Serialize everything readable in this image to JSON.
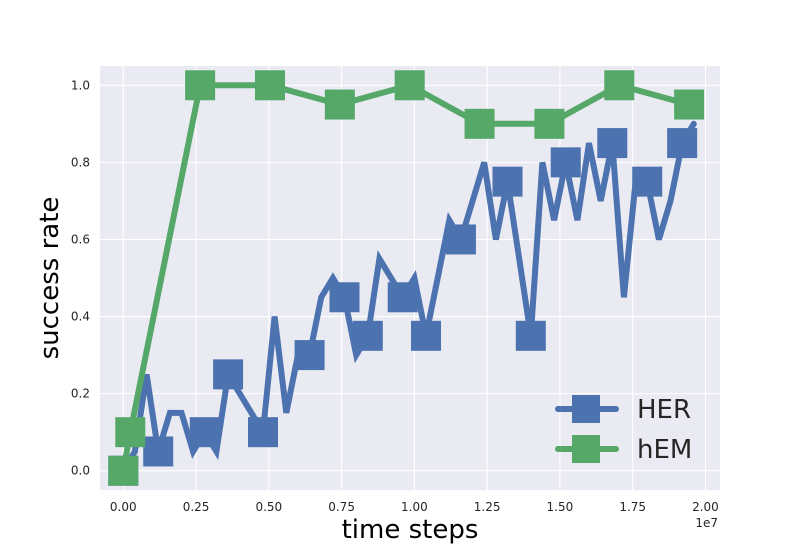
{
  "chart_data": {
    "type": "line",
    "title": "",
    "xlabel": "time steps",
    "ylabel": "success rate",
    "x_offset_label": "1e7",
    "xlim": [
      -0.08,
      2.05
    ],
    "ylim": [
      -0.05,
      1.05
    ],
    "x_ticks": [
      0.0,
      0.25,
      0.5,
      0.75,
      1.0,
      1.25,
      1.5,
      1.75,
      2.0
    ],
    "x_tick_labels": [
      "0.00",
      "0.25",
      "0.50",
      "0.75",
      "1.00",
      "1.25",
      "1.50",
      "1.75",
      "2.00"
    ],
    "y_ticks": [
      0.0,
      0.2,
      0.4,
      0.6,
      0.8,
      1.0
    ],
    "y_tick_labels": [
      "0.0",
      "0.2",
      "0.4",
      "0.6",
      "0.8",
      "1.0"
    ],
    "grid": true,
    "legend_position": "lower-right",
    "background_color": "#EAEAF2",
    "grid_color": "#FFFFFF",
    "series": [
      {
        "name": "HER",
        "color": "#4C72B0",
        "marker": "square",
        "x": [
          0.0,
          0.04,
          0.08,
          0.12,
          0.16,
          0.2,
          0.24,
          0.28,
          0.32,
          0.36,
          0.4,
          0.44,
          0.48,
          0.52,
          0.56,
          0.6,
          0.64,
          0.68,
          0.72,
          0.76,
          0.8,
          0.84,
          0.88,
          0.92,
          0.96,
          1.0,
          1.04,
          1.08,
          1.12,
          1.16,
          1.2,
          1.24,
          1.28,
          1.32,
          1.36,
          1.4,
          1.44,
          1.48,
          1.52,
          1.56,
          1.6,
          1.64,
          1.68,
          1.72,
          1.76,
          1.8,
          1.84,
          1.88,
          1.92,
          1.96
        ],
        "y": [
          0.0,
          0.05,
          0.25,
          0.05,
          0.15,
          0.15,
          0.05,
          0.1,
          0.05,
          0.25,
          0.2,
          0.15,
          0.1,
          0.4,
          0.15,
          0.3,
          0.3,
          0.45,
          0.5,
          0.45,
          0.3,
          0.35,
          0.55,
          0.5,
          0.45,
          0.5,
          0.35,
          0.5,
          0.65,
          0.6,
          0.7,
          0.8,
          0.6,
          0.75,
          0.55,
          0.35,
          0.8,
          0.65,
          0.8,
          0.65,
          0.85,
          0.7,
          0.85,
          0.45,
          0.75,
          0.75,
          0.6,
          0.7,
          0.85,
          0.9
        ],
        "marker_indices": [
          0,
          3,
          7,
          9,
          12,
          16,
          19,
          21,
          24,
          26,
          29,
          33,
          35,
          38,
          42,
          45,
          48
        ]
      },
      {
        "name": "hEM",
        "color": "#55A868",
        "marker": "square",
        "x": [
          0.0,
          0.024,
          0.264,
          0.504,
          0.744,
          0.984,
          1.224,
          1.464,
          1.704,
          1.944
        ],
        "y": [
          0.0,
          0.1,
          1.0,
          1.0,
          0.95,
          1.0,
          0.9,
          0.9,
          1.0,
          0.95
        ],
        "marker_indices": [
          0,
          1,
          2,
          3,
          4,
          5,
          6,
          7,
          8,
          9
        ]
      }
    ]
  }
}
